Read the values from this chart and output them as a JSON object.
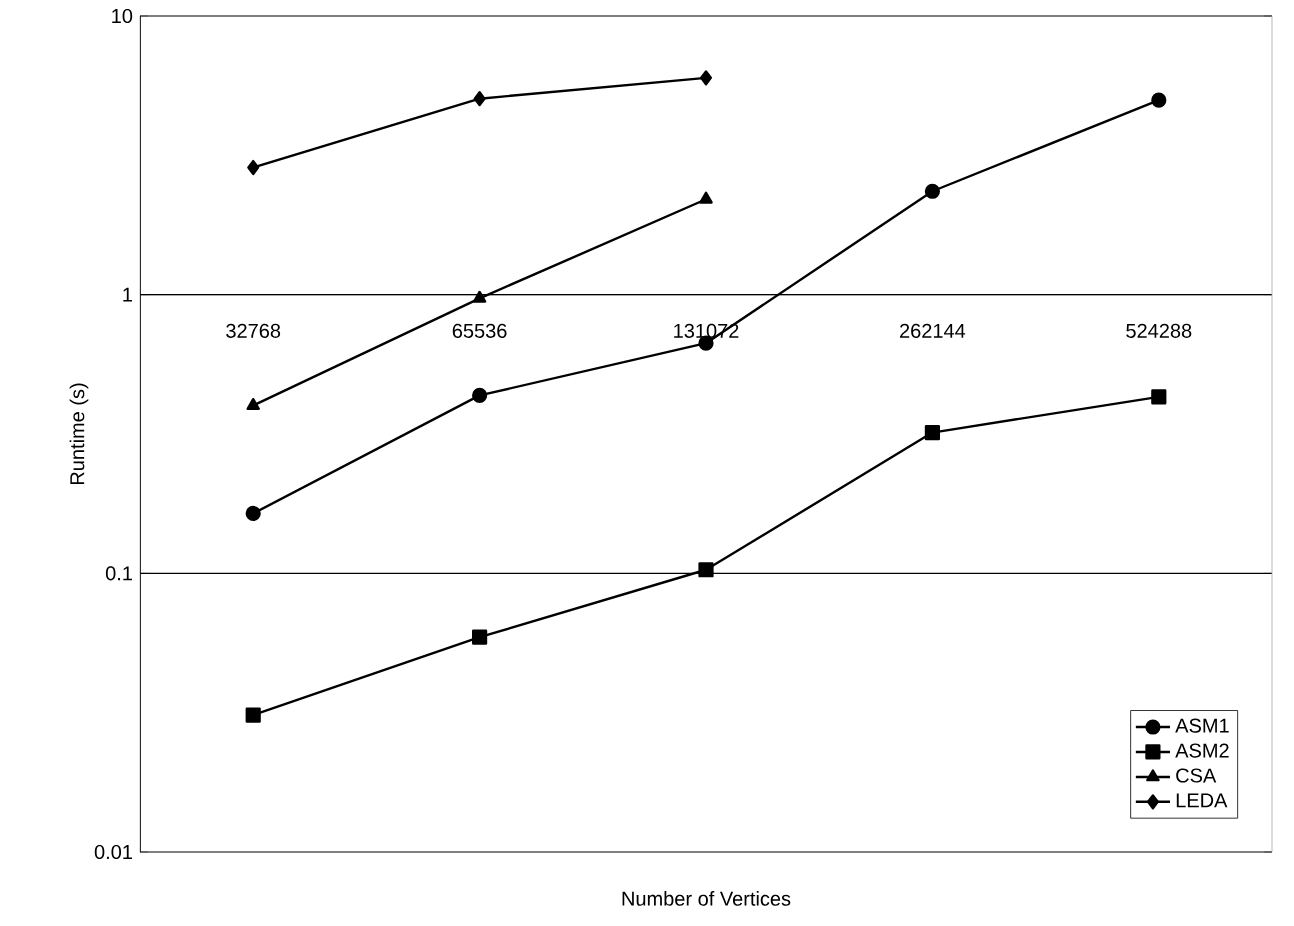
{
  "chart_data": {
    "type": "line",
    "xlabel": "Number of Vertices",
    "ylabel": "Runtime (s)",
    "categories": [
      "32768",
      "65536",
      "131072",
      "262144",
      "524288"
    ],
    "series": [
      {
        "name": "ASM1",
        "color": "#000000",
        "marker": "circle",
        "values": [
          0.164,
          0.435,
          0.67,
          2.35,
          4.99
        ]
      },
      {
        "name": "ASM2",
        "color": "#000000",
        "marker": "square",
        "values": [
          0.031,
          0.059,
          0.103,
          0.32,
          0.43
        ]
      },
      {
        "name": "CSA",
        "color": "#000000",
        "marker": "triangle",
        "values": [
          0.4,
          0.97,
          2.2,
          null,
          null
        ]
      },
      {
        "name": "LEDA",
        "color": "#000000",
        "marker": "diamond",
        "values": [
          2.86,
          5.05,
          6.0,
          null,
          null
        ]
      }
    ],
    "log": "y",
    "ylim": [
      0.01,
      10
    ],
    "yticks": [
      0.01,
      0.1,
      1,
      10
    ],
    "grid": "y",
    "legend": "bottom right",
    "line_style": "solid"
  }
}
